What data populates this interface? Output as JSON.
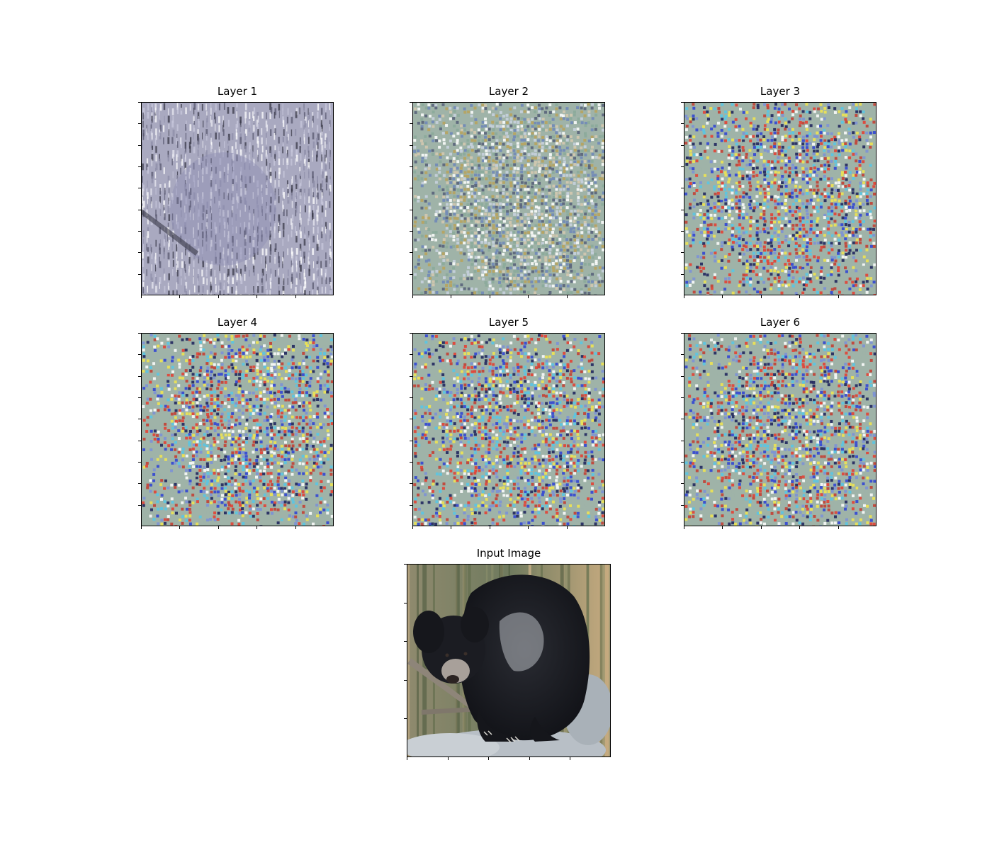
{
  "panels": [
    {
      "id": "layer-1",
      "title": "Layer 1",
      "style": "relief"
    },
    {
      "id": "layer-2",
      "title": "Layer 2",
      "style": "noise-fine"
    },
    {
      "id": "layer-3",
      "title": "Layer 3",
      "style": "noise-color"
    },
    {
      "id": "layer-4",
      "title": "Layer 4",
      "style": "noise-color"
    },
    {
      "id": "layer-5",
      "title": "Layer 5",
      "style": "noise-color"
    },
    {
      "id": "layer-6",
      "title": "Layer 6",
      "style": "noise-color"
    },
    {
      "id": "input-image",
      "title": "Input Image",
      "style": "photo"
    }
  ],
  "colors": {
    "relief_base": "#a9a9c0",
    "noise_base": "#9fb3a8",
    "bear": "#1e2026",
    "background_grass": "#b49a73",
    "rock": "#b4bcc4"
  }
}
